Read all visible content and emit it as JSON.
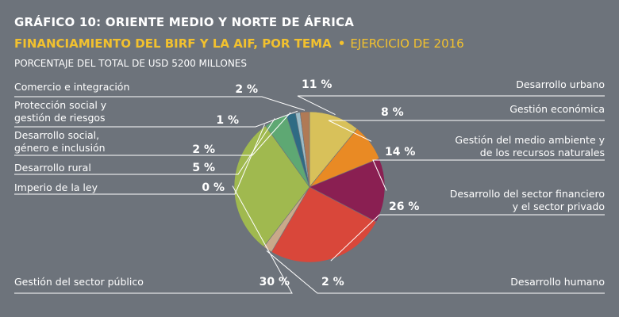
{
  "figure": {
    "title": "GRÁFICO 10:  ORIENTE MEDIO Y NORTE DE ÁFRICA",
    "subtitle": "FINANCIAMIENTO DEL BIRF Y LA AIF, POR TEMA",
    "separator": "•",
    "fiscal_year": "EJERCICIO DE 2016",
    "units": "PORCENTAJE DEL TOTAL DE USD 5200 MILLONES"
  },
  "chart_data": {
    "type": "pie",
    "start": "12 o'clock, clockwise",
    "slices": [
      {
        "label": "Desarrollo urbano",
        "lines": [
          "Desarrollo urbano"
        ],
        "value": 11,
        "value_label": "11 %",
        "color": "#d8c15a"
      },
      {
        "label": "Gestión económica",
        "lines": [
          "Gestión económica"
        ],
        "value": 8,
        "value_label": "8 %",
        "color": "#e98a24"
      },
      {
        "label": "Gestión del medio ambiente y de los recursos naturales",
        "lines": [
          "Gestión del medio ambiente y",
          "de los recursos naturales"
        ],
        "value": 14,
        "value_label": "14 %",
        "color": "#8a1f52"
      },
      {
        "label": "Desarrollo del sector financiero y el sector privado",
        "lines": [
          "Desarrollo del sector financiero",
          "y el sector privado"
        ],
        "value": 26,
        "value_label": "26 %",
        "color": "#d9473a"
      },
      {
        "label": "Desarrollo humano",
        "lines": [
          "Desarrollo humano"
        ],
        "value": 2,
        "value_label": "2 %",
        "color": "#c9a98a"
      },
      {
        "label": "Gestión del sector público",
        "lines": [
          "Gestión del sector público"
        ],
        "value": 30,
        "value_label": "30 %",
        "color": "#a0b94f"
      },
      {
        "label": "Imperio de la ley",
        "lines": [
          "Imperio de la ley"
        ],
        "value": 0,
        "value_label": "0 %",
        "color": "#c4b98f"
      },
      {
        "label": "Desarrollo rural",
        "lines": [
          "Desarrollo rural"
        ],
        "value": 5,
        "value_label": "5 %",
        "color": "#5ea873"
      },
      {
        "label": "Desarrollo social, género e inclusión",
        "lines": [
          "Desarrollo social,",
          "género e inclusión"
        ],
        "value": 2,
        "value_label": "2 %",
        "color": "#2f6b84"
      },
      {
        "label": "Protección social y gestión de riesgos",
        "lines": [
          "Protección social y",
          "gestión de riesgos"
        ],
        "value": 1,
        "value_label": "1 %",
        "color": "#9bbcc8"
      },
      {
        "label": "Comercio e integración",
        "lines": [
          "Comercio e integración"
        ],
        "value": 2,
        "value_label": "2 %",
        "color": "#b07a55"
      }
    ]
  }
}
